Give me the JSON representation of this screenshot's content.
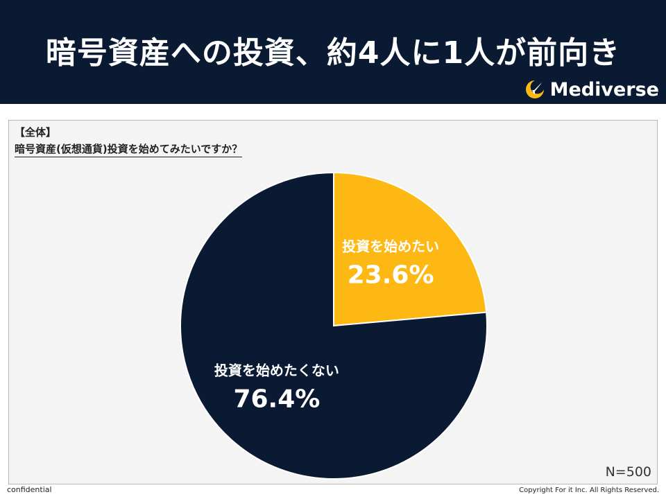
{
  "header": {
    "title": "暗号資産への投資、約4人に1人が前向き",
    "brand_name": "Mediverse"
  },
  "panel": {
    "tag": "【全体】",
    "question": "暗号資産(仮想通貨)投資を始めてみたいですか？",
    "sample_size": "N=500"
  },
  "chart_data": {
    "type": "pie",
    "title": "暗号資産(仮想通貨)投資を始めてみたいですか？",
    "slices": [
      {
        "label": "投資を始めたい",
        "value": 23.6,
        "value_label": "23.6%",
        "color": "#fdb813"
      },
      {
        "label": "投資を始めたくない",
        "value": 76.4,
        "value_label": "76.4%",
        "color": "#0b1a33"
      }
    ],
    "start_angle": "12 o'clock",
    "direction": "clockwise",
    "legend": "none"
  },
  "footer": {
    "left": "confidential",
    "right": "Copyright For it Inc. All Rights Reserved."
  },
  "colors": {
    "header_bg": "#0b1a33",
    "accent": "#fdb813",
    "panel_bg": "#f4f4f4"
  },
  "icons": {
    "brand": "rocket-moon-icon"
  }
}
